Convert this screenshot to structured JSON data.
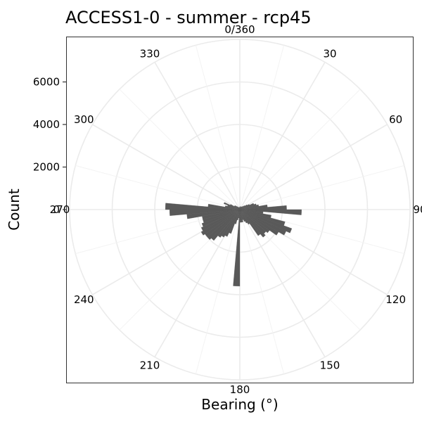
{
  "chart_data": {
    "type": "bar",
    "coordinate_system": "polar",
    "title": "ACCESS1-0 - summer - rcp45",
    "xlabel": "Bearing (°)",
    "ylabel": "Count",
    "bin_width_deg": 5,
    "y_ticks": [
      0,
      2000,
      4000,
      6000
    ],
    "y_tick_labels": [
      "0",
      "2000",
      "4000",
      "6000"
    ],
    "ylim": [
      0,
      8000
    ],
    "angle_ticks": [
      0,
      30,
      60,
      90,
      120,
      150,
      180,
      210,
      240,
      270,
      300,
      330
    ],
    "angle_tick_labels": [
      "0/360",
      "30",
      "60",
      "90",
      "120",
      "150",
      "180",
      "210",
      "240",
      "270",
      "300",
      "330"
    ],
    "grid": true,
    "bar_color": "#595959",
    "bearings": [
      0,
      5,
      10,
      15,
      20,
      25,
      30,
      35,
      40,
      45,
      50,
      55,
      60,
      65,
      70,
      75,
      80,
      85,
      90,
      95,
      100,
      105,
      110,
      115,
      120,
      125,
      130,
      135,
      140,
      145,
      150,
      155,
      160,
      165,
      170,
      175,
      180,
      185,
      190,
      195,
      200,
      205,
      210,
      215,
      220,
      225,
      230,
      235,
      240,
      245,
      250,
      255,
      260,
      265,
      270,
      275,
      280,
      285,
      290,
      295,
      300,
      305,
      310,
      315,
      320,
      325,
      330,
      335,
      340,
      345,
      350,
      355
    ],
    "values": [
      150,
      120,
      100,
      150,
      120,
      150,
      150,
      180,
      200,
      250,
      300,
      400,
      500,
      700,
      800,
      900,
      1300,
      2200,
      2900,
      1100,
      1500,
      2200,
      2600,
      2400,
      2100,
      1700,
      1600,
      1700,
      1500,
      800,
      700,
      600,
      500,
      600,
      600,
      600,
      3600,
      400,
      500,
      700,
      1200,
      1400,
      1500,
      1600,
      1900,
      2000,
      2000,
      2100,
      2000,
      1900,
      1800,
      1800,
      2500,
      3300,
      3500,
      1500,
      700,
      600,
      800,
      500,
      300,
      300,
      250,
      200,
      150,
      150,
      120,
      100,
      100,
      80,
      120,
      130
    ]
  }
}
